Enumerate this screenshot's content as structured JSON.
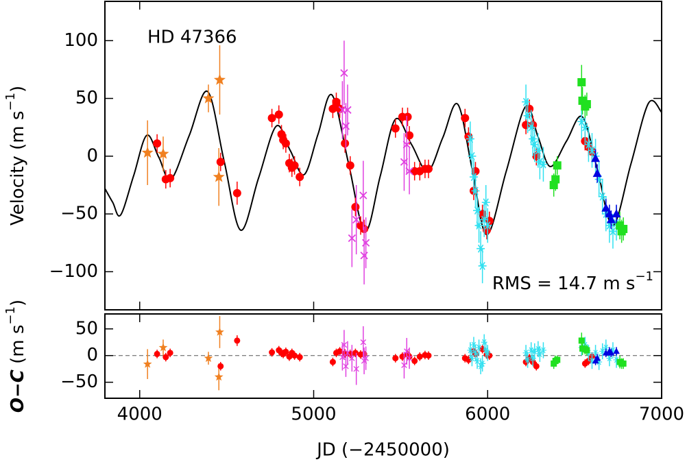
{
  "chart_data": [
    {
      "type": "scatter",
      "title": "HD 47366",
      "annotation": {
        "text": "RMS = 14.7 m s",
        "sup": "−1"
      },
      "y_label": {
        "text": "Velocity (m s",
        "sup": "−1",
        "end": ")"
      },
      "xlim": [
        3800,
        7000
      ],
      "xticks": [
        4000,
        5000,
        6000,
        7000
      ],
      "xtick_labels": false,
      "ylim": [
        -133,
        134
      ],
      "yticks": [
        {
          "value": -100,
          "label": "−100"
        },
        {
          "value": -50,
          "label": "−50"
        },
        0,
        50,
        100
      ],
      "model": {
        "color": "#000000",
        "x": [
          3800,
          3845,
          3890,
          3965,
          4040,
          4110,
          4180,
          4285,
          4390,
          4485,
          4580,
          4683,
          4785,
          4865,
          4945,
          5025,
          5105,
          5200,
          5295,
          5383,
          5470,
          5563,
          5655,
          5742,
          5828,
          5912,
          5995,
          6107,
          6218,
          6289,
          6360,
          6453,
          6545,
          6633,
          6720,
          6823,
          6925,
          7000
        ],
        "values": [
          -28,
          -40,
          -51,
          -17,
          18,
          -1,
          -20,
          18,
          56,
          -4,
          -64,
          -19,
          26,
          5,
          -16,
          19,
          53,
          -6,
          -65,
          -17,
          32,
          10,
          -13,
          16,
          45,
          -12,
          -68,
          -13,
          43,
          17,
          -9,
          13,
          34,
          -13,
          -60,
          -7,
          46,
          38
        ]
      },
      "series": [
        {
          "color": "#f08020",
          "marker": "star",
          "x": [
            4045,
            4135,
            4395,
            4460,
            4455
          ],
          "values": [
            3,
            2,
            50,
            66,
            -18
          ],
          "errors": [
            28,
            15,
            12,
            30,
            25
          ]
        },
        {
          "color": "#ff0000",
          "marker": "circle",
          "x": [
            4100,
            4150,
            4175,
            4465,
            4560,
            4760,
            4800,
            4815,
            4825,
            4840,
            4860,
            4875,
            4890,
            4920,
            5110,
            5130,
            5150,
            5180,
            5210,
            5240,
            5270,
            5290,
            5470,
            5510,
            5540,
            5550,
            5580,
            5610,
            5640,
            5660,
            5870,
            5890,
            5920,
            5930,
            5970,
            5995,
            6010,
            6220,
            6240,
            6260,
            6280,
            6560,
            6580,
            6600
          ],
          "values": [
            11,
            -20,
            -19,
            -5,
            -32,
            33,
            36,
            19,
            14,
            11,
            -6,
            -10,
            -8,
            -18,
            41,
            47,
            41,
            11,
            -8,
            -44,
            -60,
            -63,
            24,
            34,
            34,
            18,
            -13,
            -13,
            -11,
            -11,
            33,
            17,
            -30,
            -13,
            -50,
            -64,
            -56,
            27,
            41,
            27,
            0,
            13,
            8,
            4
          ],
          "errors": [
            8,
            8,
            8,
            8,
            10,
            8,
            8,
            8,
            8,
            8,
            8,
            8,
            8,
            8,
            8,
            8,
            8,
            8,
            8,
            8,
            8,
            8,
            8,
            8,
            8,
            8,
            8,
            8,
            8,
            8,
            8,
            8,
            8,
            8,
            8,
            8,
            8,
            8,
            8,
            8,
            8,
            8,
            8,
            8
          ]
        },
        {
          "color": "#e040e0",
          "marker": "x",
          "x": [
            5165,
            5175,
            5185,
            5195,
            5220,
            5245,
            5285,
            5290,
            5300,
            5520,
            5535,
            5550
          ],
          "values": [
            40,
            72,
            26,
            40,
            -71,
            -55,
            -34,
            -86,
            -75,
            -5,
            10,
            -13
          ],
          "errors": [
            25,
            28,
            20,
            22,
            25,
            30,
            30,
            25,
            22,
            25,
            25,
            20
          ]
        },
        {
          "color": "#30e0f0",
          "marker": "asterisk",
          "x": [
            5900,
            5910,
            5920,
            5930,
            5940,
            5950,
            5960,
            5970,
            5980,
            5990,
            6000,
            6220,
            6230,
            6250,
            6260,
            6270,
            6290,
            6300,
            6320,
            6540,
            6560,
            6580,
            6600,
            6620,
            6640,
            6660,
            6680,
            6700,
            6720,
            6740
          ],
          "values": [
            15,
            0,
            -18,
            -30,
            -47,
            -60,
            -80,
            -95,
            -55,
            -40,
            -60,
            47,
            35,
            25,
            15,
            10,
            5,
            -5,
            -7,
            30,
            25,
            10,
            5,
            0,
            -20,
            -35,
            -50,
            -60,
            -65,
            -58
          ],
          "errors": [
            15,
            15,
            15,
            15,
            15,
            15,
            15,
            15,
            15,
            15,
            15,
            15,
            15,
            15,
            15,
            15,
            15,
            15,
            15,
            15,
            15,
            15,
            15,
            15,
            15,
            15,
            15,
            15,
            15,
            15
          ]
        },
        {
          "color": "#20e020",
          "marker": "square",
          "x": [
            6380,
            6390,
            6400,
            6540,
            6545,
            6560,
            6570,
            6760,
            6770,
            6780
          ],
          "values": [
            -25,
            -20,
            -8,
            64,
            48,
            43,
            45,
            -60,
            -65,
            -63
          ],
          "errors": [
            10,
            10,
            8,
            15,
            12,
            10,
            10,
            12,
            10,
            10
          ]
        },
        {
          "color": "#0000e0",
          "marker": "triangle",
          "x": [
            6620,
            6630,
            6680,
            6700,
            6710,
            6740
          ],
          "values": [
            -2,
            -15,
            -45,
            -50,
            -55,
            -50
          ],
          "errors": [
            8,
            8,
            8,
            8,
            8,
            8
          ]
        }
      ]
    },
    {
      "type": "scatter",
      "y_label": {
        "italic": "O−C",
        "text": " (m s",
        "sup": "−1",
        "end": ")"
      },
      "x_label": "JD (−2450000)",
      "xlim": [
        3800,
        7000
      ],
      "xticks": [
        4000,
        5000,
        6000,
        7000
      ],
      "xtick_labels": true,
      "ylim": [
        -80,
        78
      ],
      "yticks": [
        {
          "value": -50,
          "label": "−50"
        },
        0,
        50
      ],
      "hline": 0,
      "series": [
        {
          "color": "#f08020",
          "marker": "star",
          "x": [
            4045,
            4135,
            4395,
            4460,
            4455
          ],
          "values": [
            -16,
            15,
            -5,
            44,
            -40
          ],
          "errors": [
            28,
            15,
            12,
            30,
            25
          ]
        },
        {
          "color": "#ff0000",
          "marker": "circle",
          "x": [
            4100,
            4150,
            4175,
            4465,
            4560,
            4760,
            4800,
            4815,
            4825,
            4840,
            4860,
            4875,
            4890,
            4920,
            5110,
            5130,
            5150,
            5180,
            5210,
            5240,
            5270,
            5290,
            5470,
            5510,
            5540,
            5550,
            5580,
            5610,
            5640,
            5660,
            5870,
            5890,
            5920,
            5930,
            5970,
            5995,
            6010,
            6220,
            6240,
            6260,
            6280,
            6560,
            6580,
            6600
          ],
          "values": [
            3,
            -3,
            5,
            -20,
            28,
            6,
            10,
            5,
            3,
            7,
            -2,
            5,
            0,
            -3,
            -12,
            5,
            8,
            4,
            3,
            5,
            2,
            3,
            -5,
            -2,
            2,
            -2,
            -10,
            -2,
            1,
            0,
            -5,
            -8,
            8,
            3,
            12,
            2,
            0,
            -12,
            -5,
            -12,
            -20,
            -15,
            -10,
            -2
          ],
          "errors": [
            8,
            8,
            8,
            8,
            10,
            8,
            8,
            8,
            8,
            8,
            8,
            8,
            8,
            8,
            8,
            8,
            8,
            8,
            8,
            8,
            8,
            8,
            8,
            8,
            8,
            8,
            8,
            8,
            8,
            8,
            8,
            8,
            8,
            8,
            8,
            8,
            8,
            8,
            8,
            8,
            8,
            8,
            8,
            8
          ]
        },
        {
          "color": "#e040e0",
          "marker": "x",
          "x": [
            5165,
            5175,
            5185,
            5195,
            5220,
            5245,
            5285,
            5290,
            5300,
            5520,
            5535,
            5550
          ],
          "values": [
            -3,
            20,
            -20,
            5,
            -5,
            -25,
            25,
            -10,
            -5,
            -18,
            8,
            -5
          ],
          "errors": [
            25,
            28,
            20,
            22,
            25,
            30,
            30,
            25,
            22,
            25,
            25,
            20
          ]
        },
        {
          "color": "#30e0f0",
          "marker": "asterisk",
          "x": [
            5900,
            5910,
            5920,
            5930,
            5940,
            5950,
            5960,
            5970,
            5980,
            5990,
            6000,
            6220,
            6230,
            6250,
            6260,
            6270,
            6290,
            6300,
            6320,
            6540,
            6560,
            6580,
            6600,
            6620,
            6640,
            6660,
            6680,
            6700,
            6720,
            6740
          ],
          "values": [
            10,
            -5,
            20,
            5,
            -10,
            15,
            -20,
            -15,
            25,
            10,
            5,
            5,
            -8,
            10,
            -5,
            8,
            12,
            3,
            10,
            15,
            20,
            5,
            -10,
            5,
            -12,
            8,
            15,
            -5,
            10,
            -8
          ],
          "errors": [
            15,
            15,
            15,
            15,
            15,
            15,
            15,
            15,
            15,
            15,
            15,
            15,
            15,
            15,
            15,
            15,
            15,
            15,
            15,
            15,
            15,
            15,
            15,
            15,
            15,
            15,
            15,
            15,
            15,
            15
          ]
        },
        {
          "color": "#20e020",
          "marker": "square",
          "x": [
            6380,
            6390,
            6400,
            6540,
            6545,
            6560,
            6570,
            6760,
            6770,
            6780
          ],
          "values": [
            -15,
            -10,
            -8,
            28,
            13,
            12,
            10,
            -12,
            -15,
            -15
          ],
          "errors": [
            10,
            10,
            8,
            15,
            12,
            10,
            10,
            12,
            10,
            10
          ]
        },
        {
          "color": "#0000e0",
          "marker": "triangle",
          "x": [
            6620,
            6630,
            6680,
            6700,
            6710,
            6740
          ],
          "values": [
            -10,
            -5,
            5,
            8,
            5,
            8
          ],
          "errors": [
            8,
            8,
            8,
            8,
            8,
            8
          ]
        }
      ]
    }
  ]
}
